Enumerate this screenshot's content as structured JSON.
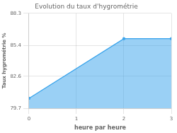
{
  "chart_data": {
    "type": "area",
    "title": "Evolution du taux d'hygrométrie",
    "xlabel": "heure par heure",
    "ylabel": "Taux hygrométrie %",
    "x": [
      0,
      2,
      3
    ],
    "values": [
      80.6,
      86.0,
      86.0
    ],
    "xlim": [
      0,
      3
    ],
    "ylim": [
      79.7,
      88.3
    ],
    "xticks": [
      0,
      1,
      2,
      3
    ],
    "yticks": [
      79.7,
      82.6,
      85.4,
      88.3
    ],
    "grid": true
  }
}
